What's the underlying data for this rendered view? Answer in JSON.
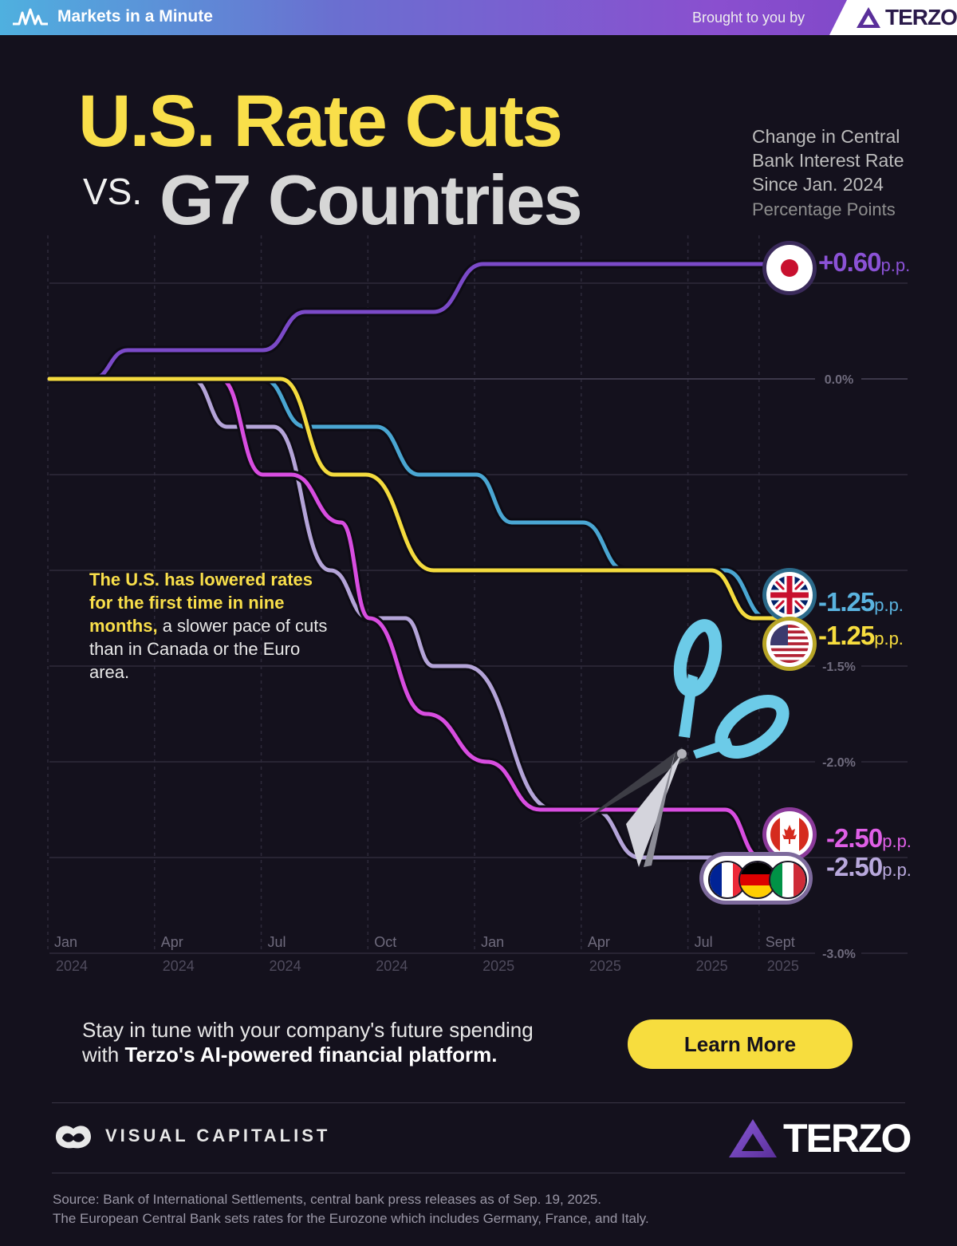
{
  "header": {
    "brand": "Markets in a Minute",
    "brought_by": "Brought to you by",
    "sponsor": "TERZO"
  },
  "title": {
    "line1": "U.S. Rate Cuts",
    "vs": "VS.",
    "line2": "G7 Countries"
  },
  "subtitle": "Change in Central Bank Interest Rate Since Jan. 2024",
  "units": "Percentage Points",
  "annotation": {
    "highlight": "The U.S. has lowered rates for the first time in nine months,",
    "rest": "a slower pace of cuts than in Canada or the Euro area."
  },
  "labels": {
    "japan": {
      "value": "+0.60",
      "unit": "p.p."
    },
    "uk": {
      "value": "-1.25",
      "unit": "p.p."
    },
    "us": {
      "value": "-1.25",
      "unit": "p.p."
    },
    "canada": {
      "value": "-2.50",
      "unit": "p.p."
    },
    "eurozone": {
      "value": "-2.50",
      "unit": "p.p."
    }
  },
  "chart_data": {
    "type": "line",
    "title": "Change in Central Bank Interest Rate Since Jan. 2024",
    "ylabel": "Percentage Points",
    "ylim": [
      -3.0,
      0.75
    ],
    "y_ticks": [
      {
        "value": 0.0,
        "label": "0.0%"
      },
      {
        "value": -1.5,
        "label": "-1.5%"
      },
      {
        "value": -2.0,
        "label": "-2.0%"
      },
      {
        "value": -3.0,
        "label": "-3.0%"
      }
    ],
    "y_gridlines": [
      0.5,
      0.0,
      -0.5,
      -1.0,
      -1.5,
      -2.0,
      -2.5,
      -3.0
    ],
    "x_ticks": [
      {
        "value": 0,
        "month": "Jan",
        "year": "2024"
      },
      {
        "value": 3,
        "month": "Apr",
        "year": "2024"
      },
      {
        "value": 6,
        "month": "Jul",
        "year": "2024"
      },
      {
        "value": 9,
        "month": "Oct",
        "year": "2024"
      },
      {
        "value": 12,
        "month": "Jan",
        "year": "2025"
      },
      {
        "value": 15,
        "month": "Apr",
        "year": "2025"
      },
      {
        "value": 18,
        "month": "Jul",
        "year": "2025"
      },
      {
        "value": 20,
        "month": "Sept",
        "year": "2025"
      }
    ],
    "xlim": [
      0,
      20.7
    ],
    "series": [
      {
        "name": "Japan",
        "color": "#7b4ac8",
        "points": [
          [
            0,
            0
          ],
          [
            1.2,
            0
          ],
          [
            2.2,
            0.15
          ],
          [
            6.0,
            0.15
          ],
          [
            7.2,
            0.35
          ],
          [
            10.8,
            0.35
          ],
          [
            12.2,
            0.6
          ],
          [
            20.7,
            0.6
          ]
        ],
        "final": 0.6
      },
      {
        "name": "United Kingdom",
        "color": "#4aa6d2",
        "points": [
          [
            0,
            0
          ],
          [
            6.0,
            0
          ],
          [
            7.2,
            -0.25
          ],
          [
            9.2,
            -0.25
          ],
          [
            10.4,
            -0.5
          ],
          [
            12.0,
            -0.5
          ],
          [
            13.0,
            -0.75
          ],
          [
            15.0,
            -0.75
          ],
          [
            16.2,
            -1.0
          ],
          [
            19.0,
            -1.0
          ],
          [
            20.2,
            -1.25
          ],
          [
            20.7,
            -1.25
          ]
        ],
        "final": -1.25
      },
      {
        "name": "United States",
        "color": "#f4db3e",
        "points": [
          [
            0,
            0
          ],
          [
            6.5,
            0
          ],
          [
            8.0,
            -0.5
          ],
          [
            8.9,
            -0.5
          ],
          [
            10.8,
            -1.0
          ],
          [
            18.6,
            -1.0
          ],
          [
            19.8,
            -1.25
          ],
          [
            20.7,
            -1.25
          ]
        ],
        "final": -1.25
      },
      {
        "name": "Canada",
        "color": "#d84de0",
        "points": [
          [
            0,
            0
          ],
          [
            4.8,
            0
          ],
          [
            6.0,
            -0.5
          ],
          [
            6.8,
            -0.5
          ],
          [
            8.2,
            -0.75
          ],
          [
            9.0,
            -1.25
          ],
          [
            10.6,
            -1.75
          ],
          [
            12.3,
            -2.0
          ],
          [
            13.8,
            -2.25
          ],
          [
            19.0,
            -2.25
          ],
          [
            20.0,
            -2.5
          ],
          [
            20.7,
            -2.5
          ]
        ],
        "final": -2.5
      },
      {
        "name": "Eurozone (France, Germany, Italy)",
        "color": "#b4a4d8",
        "points": [
          [
            0,
            0
          ],
          [
            4.0,
            0
          ],
          [
            5.0,
            -0.25
          ],
          [
            6.3,
            -0.25
          ],
          [
            7.9,
            -1.0
          ],
          [
            9.0,
            -1.25
          ],
          [
            10.0,
            -1.25
          ],
          [
            10.8,
            -1.5
          ],
          [
            11.7,
            -1.5
          ],
          [
            14.2,
            -2.25
          ],
          [
            15.3,
            -2.25
          ],
          [
            16.6,
            -2.5
          ],
          [
            20.7,
            -2.5
          ]
        ],
        "final": -2.5
      }
    ],
    "colors": {
      "grid": "#2e2a3b",
      "zero": "#3c384a",
      "axis_text": "#6f6b7d"
    }
  },
  "cta": {
    "line1": "Stay in tune with your company's future spending",
    "line2_pre": "with",
    "line2_bold": "Terzo's AI-powered financial platform.",
    "button": "Learn More"
  },
  "footer": {
    "vc": "VISUAL CAPITALIST",
    "terzo": "TERZO",
    "source1": "Source: Bank of International Settlements, central bank press releases as of Sep. 19, 2025.",
    "source2": "The European Central Bank sets rates for the Eurozone which includes Germany, France, and Italy."
  }
}
